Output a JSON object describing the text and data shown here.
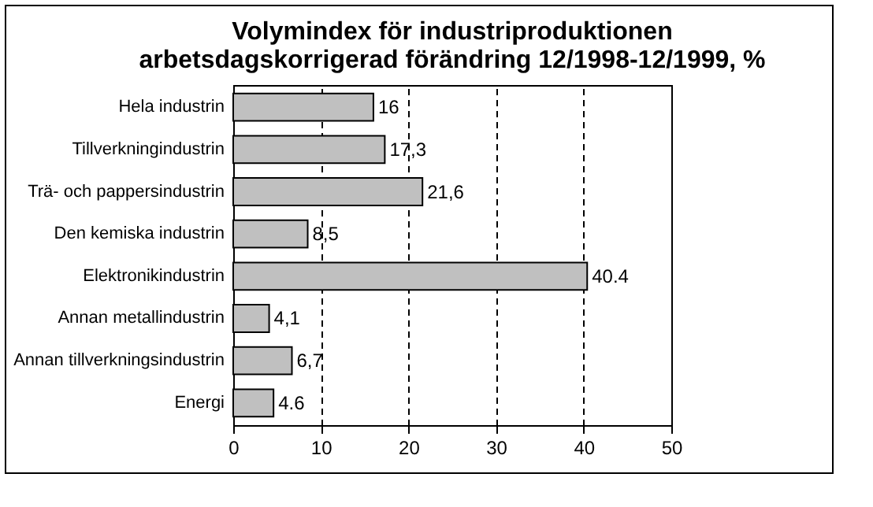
{
  "chart_data": {
    "type": "bar",
    "orientation": "horizontal",
    "title": "Volymindex för industriproduktionen",
    "subtitle": "arbetsdagskorrigerad förändring 12/1998-12/1999, %",
    "categories": [
      "Hela industrin",
      "Tillverkningindustrin",
      "Trä- och pappersindustrin",
      "Den kemiska industrin",
      "Elektronikindustrin",
      "Annan metallindustrin",
      "Annan tillverkningsindustrin",
      "Energi"
    ],
    "values": [
      16,
      17.3,
      21.6,
      8.5,
      40.4,
      4.1,
      6.7,
      4.6
    ],
    "value_labels": [
      "16",
      "17,3",
      "21,6",
      "8,5",
      "40.4",
      "4,1",
      "6,7",
      "4.6"
    ],
    "color": "#c0c0c0",
    "xlim": [
      0,
      50
    ],
    "xticks": [
      0,
      10,
      20,
      30,
      40,
      50
    ],
    "grid": "x"
  }
}
